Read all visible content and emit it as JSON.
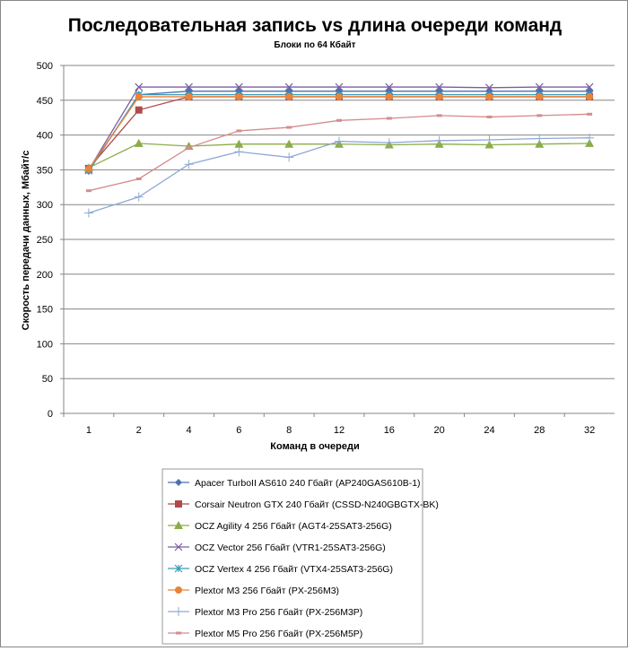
{
  "chart_data": {
    "type": "line",
    "title": "Последовательная запись vs длина очереди команд",
    "subtitle": "Блоки  по 64 Кбайт",
    "xlabel": "Команд  в очереди",
    "ylabel": "Скорость  передачи данных, Мбайт/с",
    "ylim": [
      0,
      500
    ],
    "yticks": [
      "0",
      "50",
      "100",
      "150",
      "200",
      "250",
      "300",
      "350",
      "400",
      "450",
      "500"
    ],
    "categories": [
      "1",
      "2",
      "4",
      "6",
      "8",
      "12",
      "16",
      "20",
      "24",
      "28",
      "32"
    ],
    "grid": true,
    "legend": "bottom",
    "series": [
      {
        "name": "Apacer TurboII AS610 240 Гбайт (AP240GAS610B-1)",
        "color": "#4a72b0",
        "marker": "diamond",
        "values": [
          348,
          458,
          463,
          463,
          463,
          463,
          463,
          463,
          463,
          463,
          463
        ]
      },
      {
        "name": "Corsair Neutron GTX 240 Гбайт (CSSD-N240GBGTX-BK)",
        "color": "#b04a48",
        "marker": "square",
        "values": [
          352,
          436,
          455,
          455,
          455,
          455,
          455,
          455,
          455,
          455,
          455
        ]
      },
      {
        "name": "OCZ Agility 4 256 Гбайт (AGT4-25SAT3-256G)",
        "color": "#8cac48",
        "marker": "triangle",
        "values": [
          353,
          388,
          384,
          387,
          387,
          387,
          386,
          387,
          386,
          387,
          388
        ]
      },
      {
        "name": "OCZ Vector  256 Гбайт (VTR1-25SAT3-256G)",
        "color": "#7a5ea0",
        "marker": "x",
        "values": [
          350,
          469,
          469,
          469,
          469,
          469,
          469,
          469,
          468,
          469,
          469
        ]
      },
      {
        "name": "OCZ Vertex  4 256 Гбайт (VTX4-25SAT3-256G)",
        "color": "#3a9ab8",
        "marker": "star",
        "values": [
          349,
          458,
          458,
          458,
          458,
          458,
          458,
          458,
          458,
          458,
          458
        ]
      },
      {
        "name": "Plextor M3 256 Гбайт (PX-256M3)",
        "color": "#e8843a",
        "marker": "circle",
        "values": [
          351,
          455,
          455,
          455,
          455,
          455,
          455,
          455,
          455,
          455,
          455
        ]
      },
      {
        "name": "Plextor M3 Pro 256 Гбайт (PX-256M3P)",
        "color": "#8ea8d4",
        "marker": "plus",
        "values": [
          288,
          311,
          358,
          376,
          368,
          391,
          389,
          392,
          393,
          395,
          396
        ]
      },
      {
        "name": "Plextor M5 Pro 256 Гбайт (PX-256M5P)",
        "color": "#d48c8c",
        "marker": "dash",
        "values": [
          320,
          337,
          382,
          406,
          411,
          421,
          424,
          428,
          426,
          428,
          430
        ]
      }
    ]
  }
}
